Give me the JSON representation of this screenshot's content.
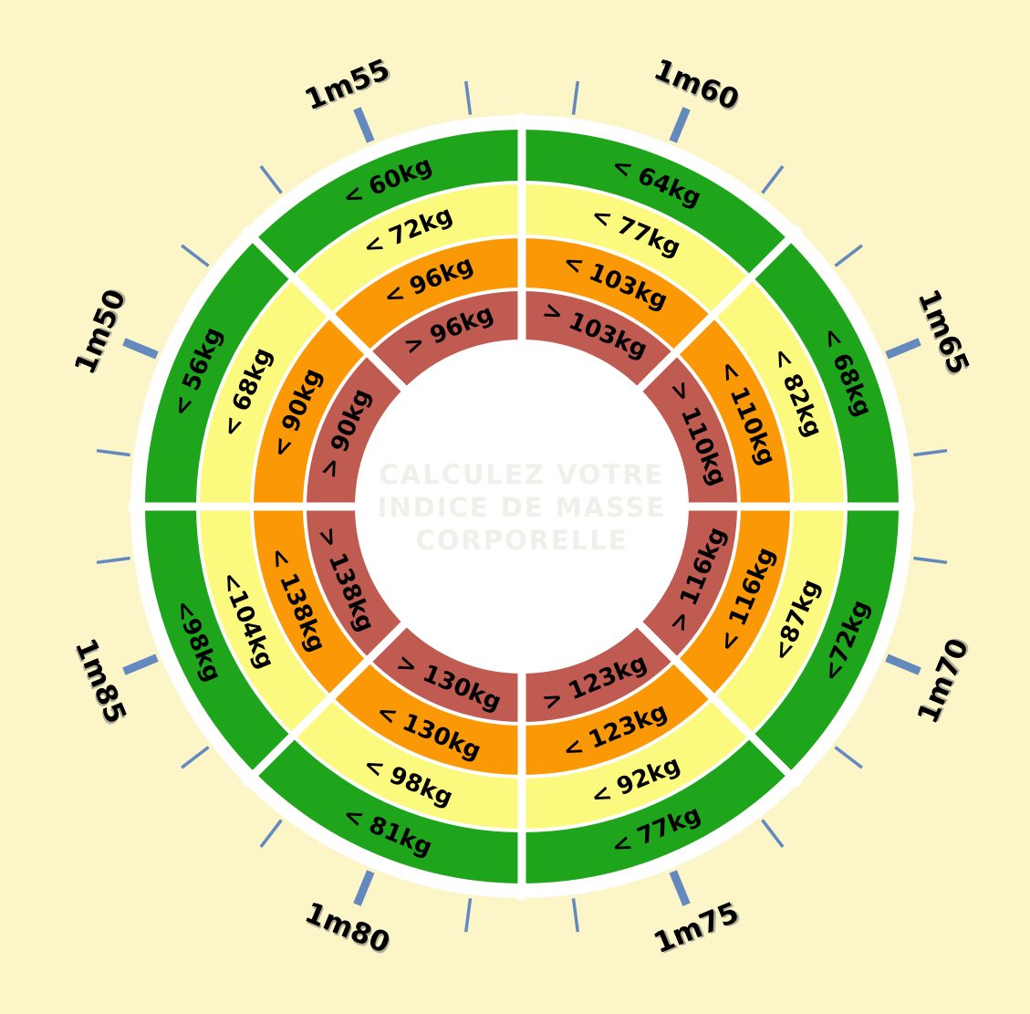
{
  "background_color": "#FBF5C7",
  "colors": {
    "green": "#1FA51B",
    "yellow": "#FBF97E",
    "orange": "#FB9805",
    "red": "#C05B52",
    "rim_white": "#FFFFFF",
    "tick_blue": "#6489BE",
    "label_black": "#000000",
    "center_text_grey": "#F1EFE9"
  },
  "center_text": {
    "lines": [
      "CALCULEZ VOTRE",
      "INDICE DE MASSE",
      "CORPORELLE"
    ]
  },
  "chart_data": {
    "type": "table",
    "layout": "radial-wheel",
    "title": "CALCULEZ VOTRE INDICE DE MASSE CORPORELLE",
    "units": "kg",
    "ring_order_outer_to_inner": [
      "green",
      "yellow",
      "orange",
      "red"
    ],
    "sectors": [
      {
        "height": "1m60",
        "center_angle_deg": 22.5,
        "labels": [
          "< 64kg",
          "< 77kg",
          "< 103kg",
          "> 103kg"
        ]
      },
      {
        "height": "1m65",
        "center_angle_deg": 67.5,
        "labels": [
          "< 68kg",
          "< 82kg",
          "< 110kg",
          "> 110kg"
        ]
      },
      {
        "height": "1m70",
        "center_angle_deg": 112.5,
        "labels": [
          "<72kg",
          "<87kg",
          "< 116kg",
          "> 116kg"
        ]
      },
      {
        "height": "1m75",
        "center_angle_deg": 157.5,
        "labels": [
          "< 77kg",
          "< 92kg",
          "< 123kg",
          "> 123kg"
        ]
      },
      {
        "height": "1m80",
        "center_angle_deg": 202.5,
        "labels": [
          "< 81kg",
          "< 98kg",
          "< 130kg",
          "> 130kg"
        ]
      },
      {
        "height": "1m85",
        "center_angle_deg": 247.5,
        "labels": [
          "<98kg",
          "<104kg",
          "< 138kg",
          "> 138kg"
        ]
      },
      {
        "height": "1m50",
        "center_angle_deg": 292.5,
        "labels": [
          "< 56kg",
          "< 68kg",
          "< 90kg",
          "> 90kg"
        ]
      },
      {
        "height": "1m55",
        "center_angle_deg": 337.5,
        "labels": [
          "< 60kg",
          "< 72kg",
          "< 96kg",
          "> 96kg"
        ]
      }
    ]
  }
}
